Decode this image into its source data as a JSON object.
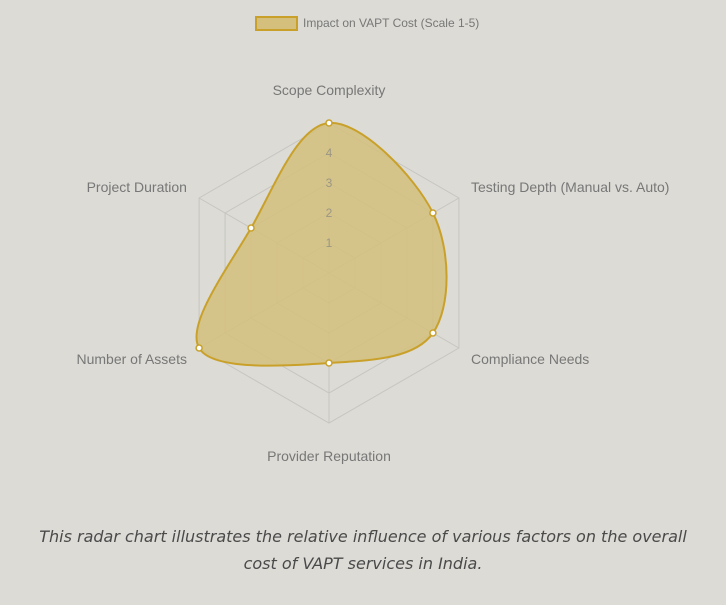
{
  "chart_data": {
    "type": "radar",
    "categories": [
      "Scope Complexity",
      "Testing Depth (Manual vs. Auto)",
      "Compliance Needs",
      "Provider Reputation",
      "Number of Assets",
      "Project Duration"
    ],
    "series": [
      {
        "name": "Impact on VAPT Cost (Scale 1-5)",
        "values": [
          5,
          4,
          4,
          3,
          5,
          3
        ]
      }
    ],
    "r_range": [
      0,
      5
    ],
    "r_ticks": [
      "1",
      "2",
      "3",
      "4"
    ],
    "legend_position": "top",
    "grid": true,
    "colors": {
      "fill": "#d4bf7c",
      "stroke": "#c9a12a",
      "grid": "#c6c5c0",
      "tick": "#9a9684",
      "label": "#777777"
    }
  },
  "caption": "This radar chart illustrates the relative influence of various factors on the overall cost of VAPT services in India."
}
